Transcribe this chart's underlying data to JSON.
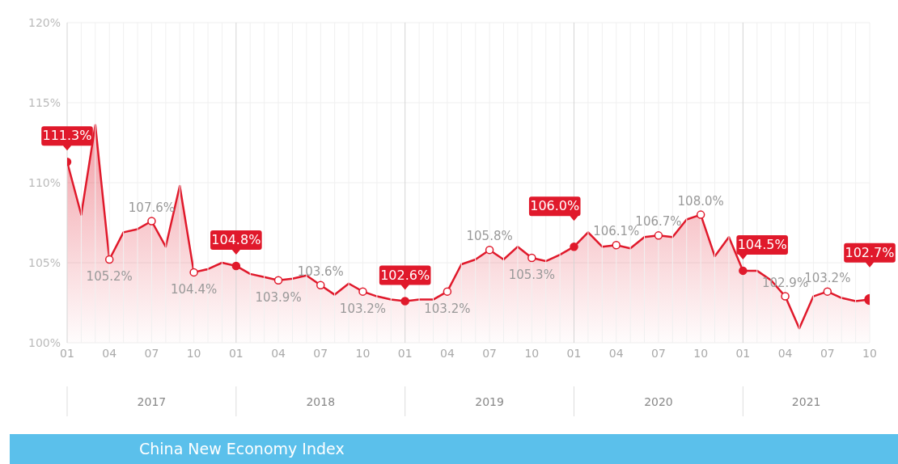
{
  "chart_data": {
    "type": "area",
    "title": "China New Economy Index",
    "x": [
      "2017-01",
      "2017-02",
      "2017-03",
      "2017-04",
      "2017-05",
      "2017-06",
      "2017-07",
      "2017-08",
      "2017-09",
      "2017-10",
      "2017-11",
      "2017-12",
      "2018-01",
      "2018-02",
      "2018-03",
      "2018-04",
      "2018-05",
      "2018-06",
      "2018-07",
      "2018-08",
      "2018-09",
      "2018-10",
      "2018-11",
      "2018-12",
      "2019-01",
      "2019-02",
      "2019-03",
      "2019-04",
      "2019-05",
      "2019-06",
      "2019-07",
      "2019-08",
      "2019-09",
      "2019-10",
      "2019-11",
      "2019-12",
      "2020-01",
      "2020-02",
      "2020-03",
      "2020-04",
      "2020-05",
      "2020-06",
      "2020-07",
      "2020-08",
      "2020-09",
      "2020-10",
      "2020-11",
      "2020-12",
      "2021-01",
      "2021-02",
      "2021-03",
      "2021-04",
      "2021-05",
      "2021-06",
      "2021-07",
      "2021-08",
      "2021-09",
      "2021-10"
    ],
    "series": [
      {
        "color": "#e0192b",
        "values": [
          111.3,
          108.0,
          113.6,
          105.2,
          106.9,
          107.1,
          107.6,
          106.0,
          109.8,
          104.4,
          104.6,
          105.0,
          104.8,
          104.3,
          104.1,
          103.9,
          104.0,
          104.2,
          103.6,
          103.0,
          103.7,
          103.2,
          102.9,
          102.7,
          102.6,
          102.7,
          102.7,
          103.2,
          104.9,
          105.2,
          105.8,
          105.2,
          106.0,
          105.3,
          105.1,
          105.5,
          106.0,
          106.9,
          106.0,
          106.1,
          105.9,
          106.6,
          106.7,
          106.6,
          107.7,
          108.0,
          105.4,
          106.6,
          104.5,
          104.5,
          103.9,
          102.9,
          100.9,
          102.9,
          103.2,
          102.8,
          102.6,
          102.7
        ],
        "value_labels": [
          "111.3%",
          null,
          null,
          "105.2%",
          null,
          null,
          "107.6%",
          null,
          null,
          "104.4%",
          null,
          null,
          "104.8%",
          null,
          null,
          "103.9%",
          null,
          null,
          "103.6%",
          null,
          null,
          "103.2%",
          null,
          null,
          "102.6%",
          null,
          null,
          "103.2%",
          null,
          null,
          "105.8%",
          null,
          null,
          "105.3%",
          null,
          null,
          "106.0%",
          null,
          null,
          "106.1%",
          null,
          null,
          "106.7%",
          null,
          null,
          "108.0%",
          null,
          null,
          "104.5%",
          null,
          null,
          "102.9%",
          null,
          null,
          "103.2%",
          null,
          null,
          "102.7%"
        ]
      }
    ],
    "ylim": [
      100,
      120
    ],
    "yticks": [
      {
        "value": 100,
        "label": "100%"
      },
      {
        "value": 105,
        "label": "105%"
      },
      {
        "value": 110,
        "label": "110%"
      },
      {
        "value": 115,
        "label": "115%"
      },
      {
        "value": 120,
        "label": "120%"
      }
    ],
    "xlim": [
      "2017-01",
      "2021-10"
    ],
    "xticks": [
      {
        "value": "2017-01",
        "label": "01"
      },
      {
        "value": "2017-04",
        "label": "04"
      },
      {
        "value": "2017-07",
        "label": "07"
      },
      {
        "value": "2017-10",
        "label": "10"
      },
      {
        "value": "2018-01",
        "label": "01"
      },
      {
        "value": "2018-04",
        "label": "04"
      },
      {
        "value": "2018-07",
        "label": "07"
      },
      {
        "value": "2018-10",
        "label": "10"
      },
      {
        "value": "2019-01",
        "label": "01"
      },
      {
        "value": "2019-04",
        "label": "04"
      },
      {
        "value": "2019-07",
        "label": "07"
      },
      {
        "value": "2019-10",
        "label": "10"
      },
      {
        "value": "2020-01",
        "label": "01"
      },
      {
        "value": "2020-04",
        "label": "04"
      },
      {
        "value": "2020-07",
        "label": "07"
      },
      {
        "value": "2020-10",
        "label": "10"
      },
      {
        "value": "2021-01",
        "label": "01"
      },
      {
        "value": "2021-04",
        "label": "04"
      },
      {
        "value": "2021-07",
        "label": "07"
      },
      {
        "value": "2021-10",
        "label": "10"
      }
    ],
    "annotations": [
      "2017",
      "2018",
      "2019",
      "2020",
      "2021"
    ],
    "grid": true
  }
}
